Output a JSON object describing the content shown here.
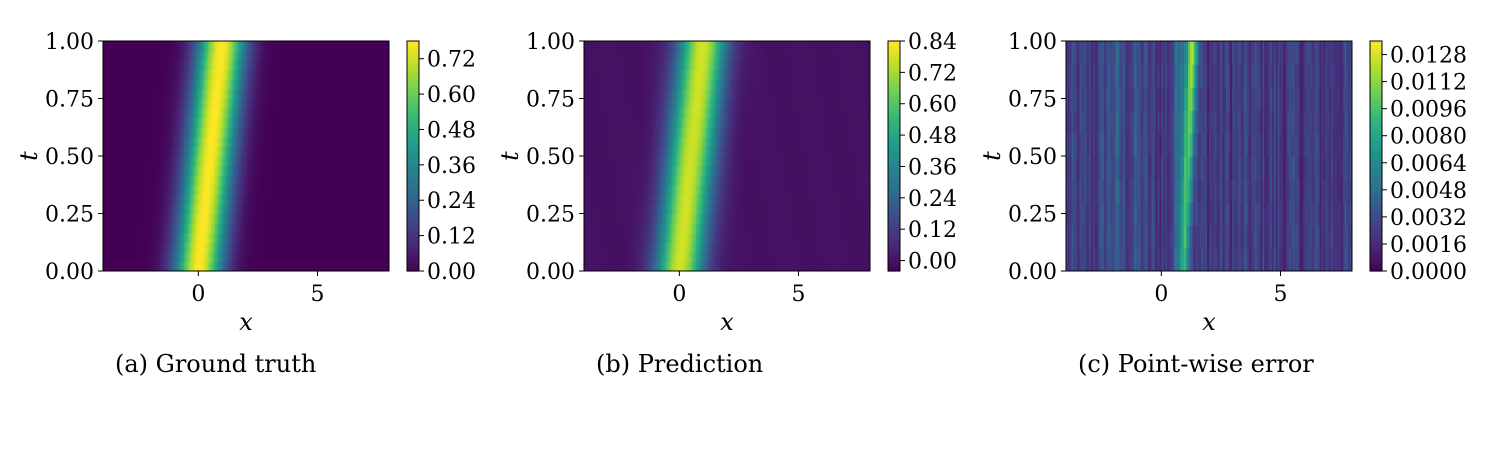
{
  "colors": {
    "viridis": [
      "#440154",
      "#482878",
      "#3e4989",
      "#31688e",
      "#26828e",
      "#1f9e89",
      "#35b779",
      "#6ece58",
      "#b5de2b",
      "#fde725"
    ]
  },
  "chart_data": [
    {
      "type": "heatmap",
      "caption": "(a) Ground truth",
      "xlabel": "x",
      "ylabel": "t",
      "xlim": [
        -4,
        8
      ],
      "ylim": [
        0,
        1
      ],
      "xticks": [
        0,
        5
      ],
      "xtick_labels": [
        "0",
        "5"
      ],
      "yticks": [
        0,
        0.25,
        0.5,
        0.75,
        1.0
      ],
      "ytick_labels": [
        "0.00",
        "0.25",
        "0.50",
        "0.75",
        "1.00"
      ],
      "colorbar": {
        "min": 0.0,
        "max": 0.78,
        "ticks": [
          0.0,
          0.12,
          0.24,
          0.36,
          0.48,
          0.6,
          0.72
        ],
        "tick_labels": [
          "0.00",
          "0.12",
          "0.24",
          "0.36",
          "0.48",
          "0.60",
          "0.72"
        ]
      },
      "field": {
        "kind": "gaussian-pulse",
        "center_at_t0": 0.0,
        "center_at_t1": 1.0,
        "width": 1.0,
        "amplitude": 0.78,
        "x": [
          -4,
          -3,
          -2,
          -1,
          0,
          1,
          2,
          3,
          4,
          5,
          6,
          7,
          8
        ],
        "value_at_t0": [
          0.0,
          0.01,
          0.12,
          0.47,
          0.78,
          0.47,
          0.12,
          0.01,
          0.0,
          0.0,
          0.0,
          0.0,
          0.0
        ]
      }
    },
    {
      "type": "heatmap",
      "caption": "(b) Prediction",
      "xlabel": "x",
      "ylabel": "t",
      "xlim": [
        -4,
        8
      ],
      "ylim": [
        0,
        1
      ],
      "xticks": [
        0,
        5
      ],
      "xtick_labels": [
        "0",
        "5"
      ],
      "yticks": [
        0,
        0.25,
        0.5,
        0.75,
        1.0
      ],
      "ytick_labels": [
        "0.00",
        "0.25",
        "0.50",
        "0.75",
        "1.00"
      ],
      "colorbar": {
        "min": -0.04,
        "max": 0.84,
        "ticks": [
          0.0,
          0.12,
          0.24,
          0.36,
          0.48,
          0.6,
          0.72,
          0.84
        ],
        "tick_labels": [
          "0.00",
          "0.12",
          "0.24",
          "0.36",
          "0.48",
          "0.60",
          "0.72",
          "0.84"
        ]
      },
      "field": {
        "kind": "gaussian-pulse",
        "center_at_t0": 0.0,
        "center_at_t1": 1.0,
        "width": 1.0,
        "amplitude": 0.78,
        "x": [
          -4,
          -3,
          -2,
          -1,
          0,
          1,
          2,
          3,
          4,
          5,
          6,
          7,
          8
        ],
        "value_at_t0": [
          0.0,
          0.01,
          0.12,
          0.47,
          0.78,
          0.47,
          0.12,
          0.01,
          0.0,
          0.0,
          0.0,
          0.0,
          0.0
        ]
      }
    },
    {
      "type": "heatmap",
      "caption": "(c) Point-wise error",
      "xlabel": "x",
      "ylabel": "t",
      "xlim": [
        -4,
        8
      ],
      "ylim": [
        0,
        1
      ],
      "xticks": [
        0,
        5
      ],
      "xtick_labels": [
        "0",
        "5"
      ],
      "yticks": [
        0,
        0.25,
        0.5,
        0.75,
        1.0
      ],
      "ytick_labels": [
        "0.00",
        "0.25",
        "0.50",
        "0.75",
        "1.00"
      ],
      "colorbar": {
        "min": 0.0,
        "max": 0.0136,
        "ticks": [
          0.0,
          0.0016,
          0.0032,
          0.0048,
          0.0064,
          0.008,
          0.0096,
          0.0112,
          0.0128
        ],
        "tick_labels": [
          "0.0000",
          "0.0016",
          "0.0032",
          "0.0048",
          "0.0064",
          "0.0080",
          "0.0096",
          "0.0112",
          "0.0128"
        ]
      },
      "field": {
        "kind": "streaky-error",
        "baseline": 0.0022,
        "peak_x_at_t0": 1.0,
        "peak_x_at_t1": 1.3,
        "peak_value": 0.0135,
        "x": [
          -4,
          -3,
          -2,
          -1,
          0,
          1,
          2,
          3,
          4,
          5,
          6,
          7,
          8
        ],
        "typical_value": [
          0.002,
          0.0028,
          0.0035,
          0.003,
          0.0025,
          0.008,
          0.0035,
          0.003,
          0.0028,
          0.0027,
          0.0025,
          0.0026,
          0.0027
        ]
      }
    }
  ]
}
